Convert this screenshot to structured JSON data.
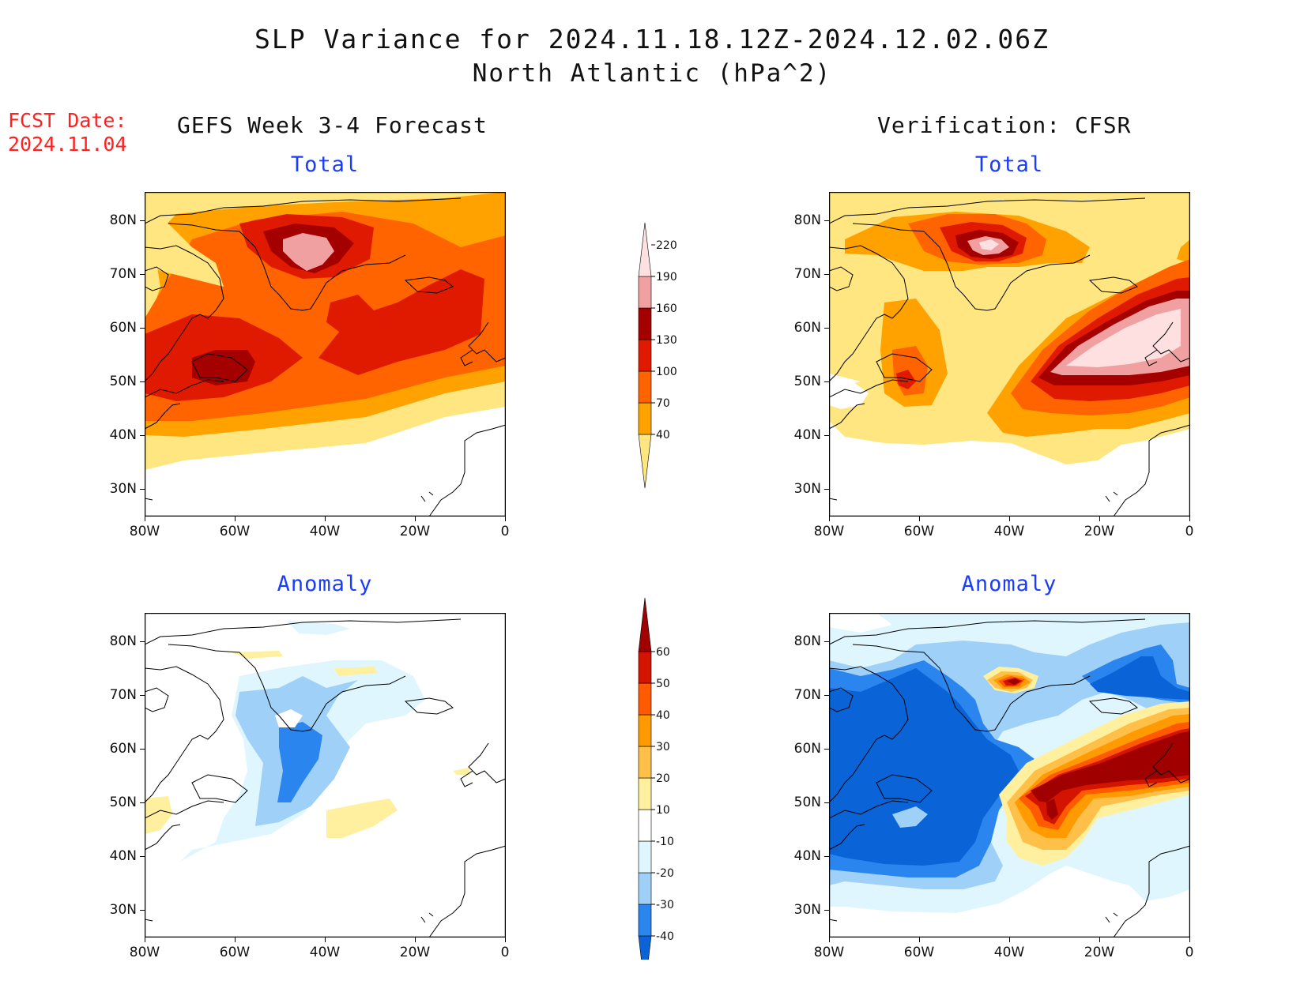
{
  "title": "SLP Variance for 2024.11.18.12Z-2024.12.02.06Z",
  "subtitle": "North Atlantic (hPa^2)",
  "fcst_date": {
    "label": "FCST Date:",
    "value": "2024.11.04"
  },
  "columns": {
    "forecast": "GEFS Week 3-4 Forecast",
    "verification": "Verification: CFSR"
  },
  "panels": {
    "total": "Total",
    "anomaly": "Anomaly"
  },
  "axes": {
    "lat_labels": [
      "80N",
      "70N",
      "60N",
      "50N",
      "40N",
      "30N"
    ],
    "lon_labels": [
      "80W",
      "60W",
      "40W",
      "20W",
      "0"
    ]
  },
  "colorbars": {
    "total": {
      "levels": [
        "40",
        "70",
        "100",
        "130",
        "160",
        "190",
        "220"
      ],
      "colors": [
        "#ffe680",
        "#ffa200",
        "#ff6400",
        "#e01a00",
        "#a50000",
        "#f0a0a0",
        "#ffe0e0"
      ]
    },
    "anomaly": {
      "levels": [
        "-40",
        "-30",
        "-20",
        "-10",
        "10",
        "20",
        "30",
        "40",
        "50",
        "60"
      ],
      "colors": [
        "#0a64d8",
        "#2a85ee",
        "#9fd0f8",
        "#dff6ff",
        "#ffffff",
        "#fff0a0",
        "#ffc04a",
        "#ff9a00",
        "#ff5a00",
        "#d21400",
        "#a00000"
      ]
    }
  }
}
